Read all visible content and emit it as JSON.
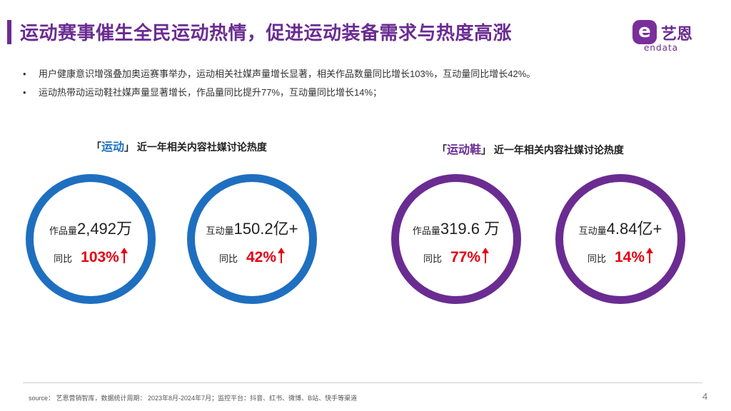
{
  "title": "运动赛事催生全民运动热情，促进运动装备需求与热度高涨",
  "logo": {
    "badge": "e",
    "cn": "艺恩",
    "en": "endata"
  },
  "bullets": [
    "用户健康意识增强叠加奥运赛事举办，运动相关社媒声量增长显著，相关作品数量同比增长103%，互动量同比增长42%。",
    "运动热带动运动鞋社媒声量显著增长，作品量同比提升77%，互动量同比增长14%；"
  ],
  "bullet_marker": "•",
  "charts": [
    {
      "bracket_open": "「",
      "keyword": "运动",
      "bracket_close": "」",
      "suffix": "近一年相关内容社媒讨论热度",
      "color": "#1f6fc0",
      "rings": [
        {
          "metric_label": "作品量",
          "metric_value": "2,492万",
          "yoy_label": "同比",
          "yoy_value": "103%"
        },
        {
          "metric_label": "互动量",
          "metric_value": "150.2亿+",
          "yoy_label": "同比",
          "yoy_value": "42%"
        }
      ]
    },
    {
      "bracket_open": "「",
      "keyword": "运动鞋",
      "bracket_close": "」",
      "suffix": "近一年相关内容社媒讨论热度",
      "color": "#6a2c91",
      "rings": [
        {
          "metric_label": "作品量",
          "metric_value": "319.6 万",
          "yoy_label": "同比",
          "yoy_value": "77%"
        },
        {
          "metric_label": "互动量",
          "metric_value": "4.84亿+",
          "yoy_label": "同比",
          "yoy_value": "14%"
        }
      ]
    }
  ],
  "source": "source： 艺恩营销智库，数据统计周期： 2023年8月-2024年7月；监控平台：抖音、红书、微博、B站、快手等渠道",
  "page_number": "4"
}
